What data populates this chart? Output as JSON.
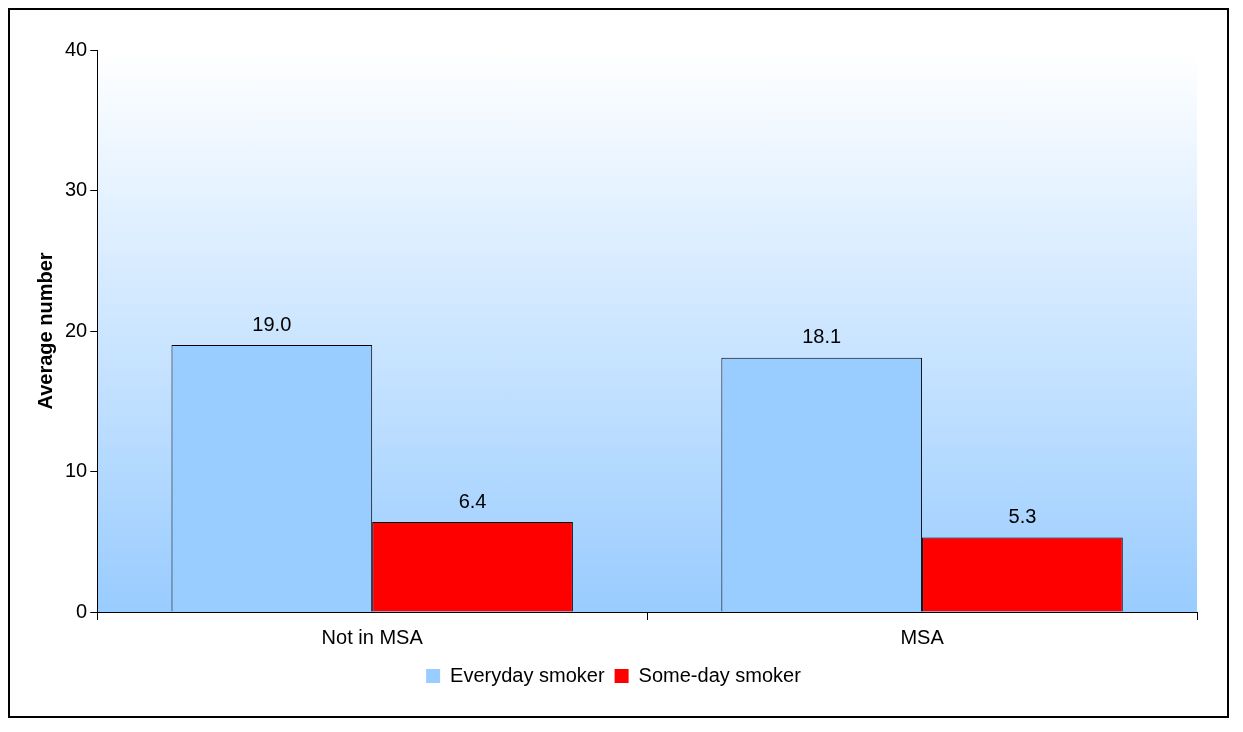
{
  "chart_data": {
    "type": "bar",
    "ylabel": "Average number",
    "categories": [
      "Not in MSA",
      "MSA"
    ],
    "series": [
      {
        "name": "Everyday smoker",
        "color": "#99ccff",
        "values": [
          19.0,
          18.1
        ],
        "value_labels": [
          "19.0",
          "18.1"
        ]
      },
      {
        "name": "Some-day smoker",
        "color": "#ff0000",
        "values": [
          6.4,
          5.3
        ],
        "value_labels": [
          "6.4",
          "5.3"
        ]
      }
    ],
    "ylim": [
      0,
      40
    ],
    "yticks": [
      0,
      10,
      20,
      30,
      40
    ],
    "legend": "bottom"
  }
}
